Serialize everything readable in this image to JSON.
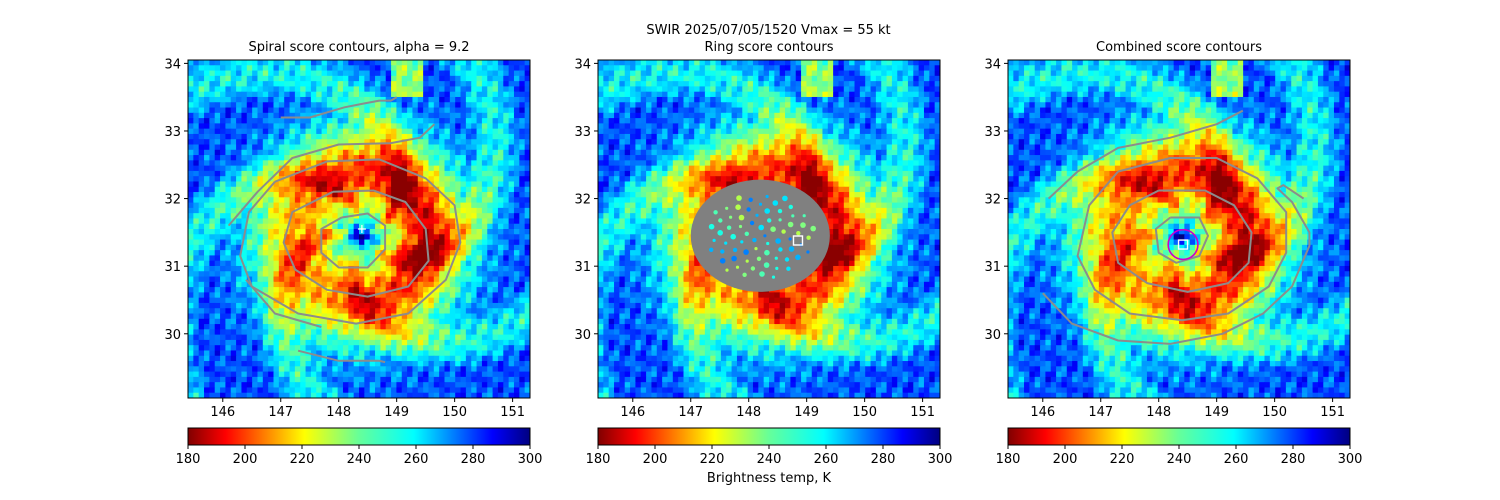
{
  "figure": {
    "suptitle": "SWIR  2025/07/05/1520    Vmax = 55 kt",
    "colorbar_label": "Brightness temp, K"
  },
  "chart_data": [
    {
      "type": "heatmap",
      "title": "Spiral score contours, alpha =  9.2",
      "xlim": [
        145.4,
        151.3
      ],
      "ylim": [
        29.05,
        34.05
      ],
      "xticks": [
        146,
        147,
        148,
        149,
        150,
        151
      ],
      "yticks": [
        30,
        31,
        32,
        33,
        34
      ],
      "colorbar": {
        "cmap": "jet_r",
        "range": [
          180,
          300
        ],
        "ticks": [
          180,
          200,
          220,
          240,
          260,
          280,
          300
        ]
      },
      "marker": {
        "type": "plus",
        "x": 148.4,
        "y": 31.55,
        "color": "#ffffff"
      },
      "contours": [
        [
          [
            148.05,
            31.72
          ],
          [
            148.5,
            31.78
          ],
          [
            148.8,
            31.6
          ],
          [
            148.8,
            31.25
          ],
          [
            148.5,
            30.98
          ],
          [
            148.0,
            30.98
          ],
          [
            147.7,
            31.2
          ],
          [
            147.7,
            31.55
          ],
          [
            148.05,
            31.72
          ]
        ],
        [
          [
            147.9,
            32.1
          ],
          [
            148.6,
            32.12
          ],
          [
            149.15,
            31.95
          ],
          [
            149.5,
            31.55
          ],
          [
            149.55,
            31.08
          ],
          [
            149.2,
            30.7
          ],
          [
            148.5,
            30.55
          ],
          [
            147.8,
            30.65
          ],
          [
            147.25,
            30.95
          ],
          [
            147.05,
            31.35
          ],
          [
            147.2,
            31.8
          ],
          [
            147.9,
            32.1
          ]
        ],
        [
          [
            146.9,
            32.25
          ],
          [
            147.8,
            32.55
          ],
          [
            148.7,
            32.58
          ],
          [
            149.5,
            32.3
          ],
          [
            150.0,
            31.9
          ],
          [
            150.1,
            31.35
          ],
          [
            149.85,
            30.8
          ],
          [
            149.2,
            30.3
          ],
          [
            148.3,
            30.15
          ],
          [
            147.3,
            30.3
          ],
          [
            146.5,
            30.7
          ],
          [
            146.3,
            31.15
          ],
          [
            146.45,
            31.8
          ],
          [
            146.9,
            32.25
          ]
        ],
        [
          [
            146.1,
            31.6
          ],
          [
            146.6,
            32.1
          ],
          [
            147.2,
            32.6
          ],
          [
            148.0,
            32.8
          ],
          [
            148.9,
            32.82
          ],
          [
            149.4,
            32.9
          ],
          [
            149.65,
            33.1
          ]
        ],
        [
          [
            147.0,
            33.2
          ],
          [
            147.5,
            33.2
          ],
          [
            148.1,
            33.35
          ],
          [
            148.4,
            33.4
          ],
          [
            148.7,
            33.45
          ],
          [
            148.9,
            33.45
          ],
          [
            149.0,
            33.5
          ]
        ],
        [
          [
            146.4,
            30.8
          ],
          [
            146.9,
            30.3
          ],
          [
            147.7,
            30.1
          ]
        ],
        [
          [
            147.3,
            29.75
          ],
          [
            148.0,
            29.6
          ],
          [
            148.7,
            29.6
          ],
          [
            148.8,
            29.58
          ]
        ]
      ]
    },
    {
      "type": "heatmap",
      "title": "Ring score contours",
      "xlim": [
        145.4,
        151.3
      ],
      "ylim": [
        29.05,
        34.05
      ],
      "xticks": [
        146,
        147,
        148,
        149,
        150,
        151
      ],
      "yticks": [
        30,
        31,
        32,
        33,
        34
      ],
      "colorbar": {
        "cmap": "jet_r",
        "range": [
          180,
          300
        ],
        "ticks": [
          180,
          200,
          220,
          240,
          260,
          280,
          300
        ]
      },
      "marker": {
        "type": "square",
        "x": 148.85,
        "y": 31.38,
        "color": "#ffffff"
      },
      "mask": {
        "cx": 148.2,
        "cy": 31.45,
        "rx": 1.2,
        "ry": 0.83,
        "color": "#808080"
      }
    },
    {
      "type": "heatmap",
      "title": "Combined score contours",
      "xlim": [
        145.4,
        151.3
      ],
      "ylim": [
        29.05,
        34.05
      ],
      "xticks": [
        146,
        147,
        148,
        149,
        150,
        151
      ],
      "yticks": [
        30,
        31,
        32,
        33,
        34
      ],
      "colorbar": {
        "cmap": "jet_r",
        "range": [
          180,
          300
        ],
        "ticks": [
          180,
          200,
          220,
          240,
          260,
          280,
          300
        ]
      },
      "marker": {
        "type": "square",
        "x": 148.42,
        "y": 31.32,
        "color": "#ffffff"
      },
      "ring": {
        "x": 148.42,
        "y": 31.32,
        "r": 0.22,
        "color": "#cc00cc"
      },
      "contours": [
        [
          [
            148.2,
            31.72
          ],
          [
            148.7,
            31.72
          ],
          [
            148.85,
            31.45
          ],
          [
            148.7,
            31.15
          ],
          [
            148.3,
            31.05
          ],
          [
            148.0,
            31.2
          ],
          [
            147.95,
            31.55
          ],
          [
            148.2,
            31.72
          ]
        ],
        [
          [
            148.0,
            32.12
          ],
          [
            148.8,
            32.12
          ],
          [
            149.3,
            31.9
          ],
          [
            149.6,
            31.5
          ],
          [
            149.55,
            31.05
          ],
          [
            149.2,
            30.75
          ],
          [
            148.5,
            30.62
          ],
          [
            147.8,
            30.75
          ],
          [
            147.3,
            31.05
          ],
          [
            147.2,
            31.5
          ],
          [
            147.5,
            31.9
          ],
          [
            148.0,
            32.12
          ]
        ],
        [
          [
            147.3,
            32.4
          ],
          [
            148.2,
            32.6
          ],
          [
            149.0,
            32.6
          ],
          [
            149.7,
            32.3
          ],
          [
            150.2,
            31.8
          ],
          [
            150.2,
            31.2
          ],
          [
            149.9,
            30.7
          ],
          [
            149.2,
            30.3
          ],
          [
            148.4,
            30.2
          ],
          [
            147.5,
            30.3
          ],
          [
            146.9,
            30.65
          ],
          [
            146.6,
            31.15
          ],
          [
            146.8,
            31.9
          ],
          [
            147.3,
            32.4
          ]
        ],
        [
          [
            146.1,
            32.0
          ],
          [
            146.6,
            32.4
          ],
          [
            147.3,
            32.75
          ],
          [
            148.2,
            32.9
          ],
          [
            149.0,
            33.1
          ],
          [
            149.45,
            33.3
          ]
        ],
        [
          [
            146.0,
            30.6
          ],
          [
            146.5,
            30.15
          ],
          [
            147.3,
            29.9
          ],
          [
            148.2,
            29.85
          ],
          [
            149.1,
            30.0
          ],
          [
            149.8,
            30.3
          ],
          [
            150.3,
            30.7
          ],
          [
            150.6,
            31.3
          ],
          [
            150.6,
            31.5
          ],
          [
            150.3,
            31.95
          ],
          [
            150.05,
            32.15
          ],
          [
            150.15,
            32.2
          ],
          [
            150.5,
            32.0
          ]
        ]
      ]
    }
  ]
}
